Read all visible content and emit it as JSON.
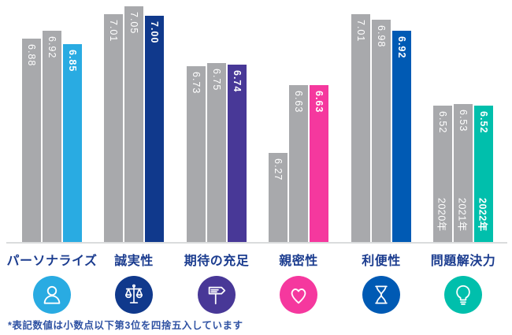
{
  "chart_data": {
    "type": "bar",
    "title": "",
    "categories": [
      "パーソナライズ",
      "誠実性",
      "期待の充足",
      "親密性",
      "利便性",
      "問題解決力"
    ],
    "series": [
      {
        "name": "2020年",
        "values": [
          6.88,
          7.01,
          6.73,
          6.27,
          7.01,
          6.52
        ]
      },
      {
        "name": "2021年",
        "values": [
          6.92,
          7.05,
          6.75,
          6.63,
          6.98,
          6.53
        ]
      },
      {
        "name": "2022年",
        "values": [
          6.85,
          7.0,
          6.74,
          6.63,
          6.92,
          6.52
        ]
      }
    ],
    "value_label_decimals": 2,
    "year_labels_shown_on_category": "問題解決力",
    "ylim": [
      5.79,
      7.12
    ],
    "grid": false,
    "legend_position": "none",
    "base_bar_color": "#A8A9AC",
    "accent_colors": [
      "#29ABE2",
      "#10398C",
      "#483897",
      "#F5389E",
      "#005AB4",
      "#00BFAC"
    ],
    "value_text_color": "#FFFFFF",
    "category_label_color": "#1B3C8F",
    "icons": [
      "personalization-person-icon",
      "integrity-scales-icon",
      "expectation-signpost-icon",
      "empathy-heart-icon",
      "time-effort-hourglass-icon",
      "resolution-lightbulb-icon"
    ]
  },
  "footnote": {
    "text": "*表記数値は小数点以下第3位を四捨五入しています",
    "color": "#2F52A3"
  }
}
